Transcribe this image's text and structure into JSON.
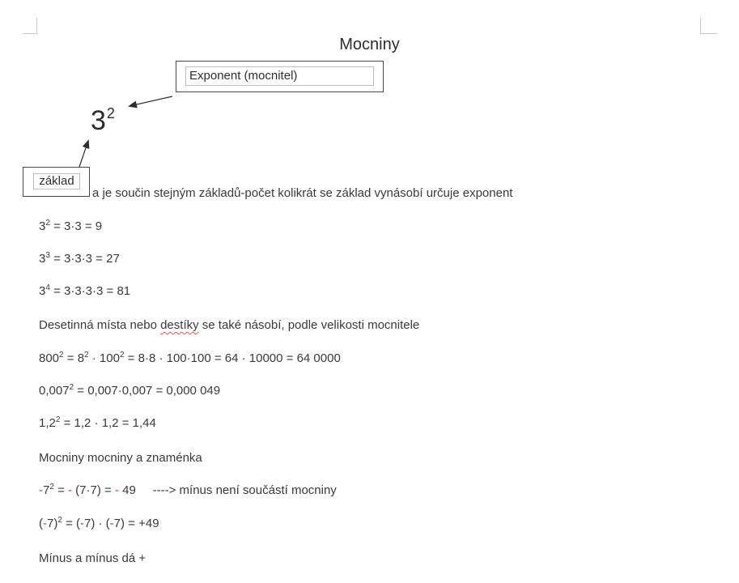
{
  "title": "Mocniny",
  "colors": {
    "accent_red": "#c03a30",
    "squiggle_red": "#e0574e",
    "body_text": "#3a3a3a"
  },
  "diagram": {
    "exponent_label": "Exponent (mocnitel)",
    "base_label": "základ",
    "power": {
      "base": "3",
      "exponent": "2"
    },
    "arrow_to_exponent_icon": "arrow-pointing-to-exponent",
    "arrow_to_base_icon": "arrow-pointing-to-base"
  },
  "lines": [
    {
      "segments": [
        {
          "t": "a je součin stejným základů-počet kolikrát se základ vynásobí určuje exponent"
        }
      ]
    },
    {
      "segments": [
        {
          "t": "3"
        },
        {
          "t": "2",
          "sup": true
        },
        {
          "t": " = 3·3 = 9"
        }
      ]
    },
    {
      "segments": [
        {
          "t": "3"
        },
        {
          "t": "3",
          "sup": true
        },
        {
          "t": " = 3·3·3 = 27"
        }
      ]
    },
    {
      "segments": [
        {
          "t": "3"
        },
        {
          "t": "4",
          "sup": true
        },
        {
          "t": " = 3·3·3·3 = 81"
        }
      ]
    },
    {
      "segments": [
        {
          "t": "Desetinná místa nebo "
        },
        {
          "t": "destíky",
          "squiggle": true
        },
        {
          "t": " se také násobí, podle velikosti mocnitele"
        }
      ]
    },
    {
      "segments": [
        {
          "t": "800"
        },
        {
          "t": "2",
          "sup": true
        },
        {
          "t": " = 8"
        },
        {
          "t": "2",
          "sup": true
        },
        {
          "t": " · 100"
        },
        {
          "t": "2",
          "sup": true
        },
        {
          "t": " = 8·8 · 100·100 = 64 · 10000 = 64 0000"
        }
      ]
    },
    {
      "segments": [
        {
          "t": "0,007"
        },
        {
          "t": "2",
          "sup": true
        },
        {
          "t": " = 0,007·0,007 = 0,000 049"
        }
      ]
    },
    {
      "segments": [
        {
          "t": "1,2"
        },
        {
          "t": "2",
          "sup": true
        },
        {
          "t": " = 1,2 · 1,2 = 1,44"
        }
      ]
    },
    {
      "segments": [
        {
          "t": "Mocniny mocniny a znaménka"
        }
      ]
    },
    {
      "segments": [
        {
          "t": "-",
          "red": true
        },
        {
          "t": "7"
        },
        {
          "t": "2",
          "sup": true
        },
        {
          "t": " = "
        },
        {
          "t": "-",
          "red": true
        },
        {
          "t": " (7·7) = "
        },
        {
          "t": "-",
          "red": true
        },
        {
          "t": " 49     ----> mínus není součástí mocniny"
        }
      ]
    },
    {
      "segments": [
        {
          "t": "("
        },
        {
          "t": "-",
          "red": true
        },
        {
          "t": "7)"
        },
        {
          "t": "2",
          "sup": true
        },
        {
          "t": " = ("
        },
        {
          "t": "-",
          "red": true
        },
        {
          "t": "7) · ("
        },
        {
          "t": "-",
          "red": true
        },
        {
          "t": "7) = +49"
        }
      ]
    },
    {
      "segments": [
        {
          "t": "Mínus a mínus dá +"
        }
      ]
    }
  ]
}
